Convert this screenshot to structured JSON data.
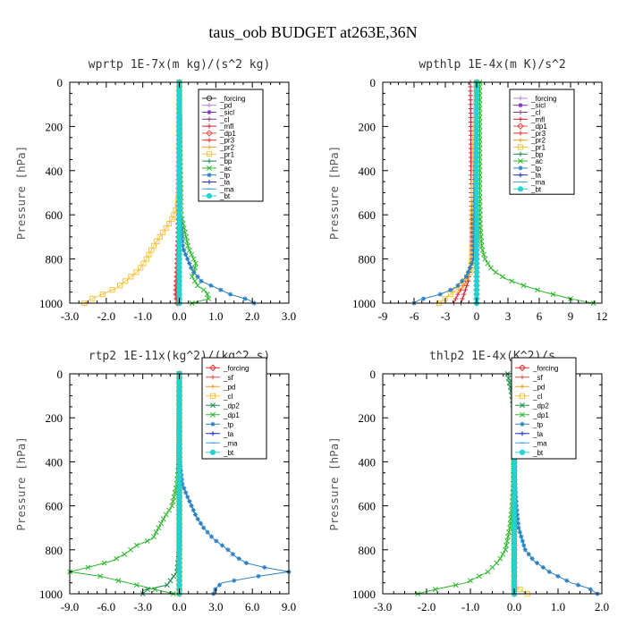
{
  "title": "taus_oob  BUDGET at263E,36N",
  "chart_data": [
    {
      "type": "line",
      "title": "wprtp   1E-7x(m kg)/(s^2 kg)",
      "ylabel": "Pressure [hPa]",
      "xlim": [
        -3.0,
        3.0
      ],
      "ylim": [
        1000,
        0
      ],
      "xticks": [
        "-3.0",
        "-2.0",
        "-1.0",
        "0.0",
        "1.0",
        "2.0",
        "3.0"
      ],
      "yticks": [
        "0",
        "200",
        "400",
        "600",
        "800",
        "1000"
      ],
      "legend": [
        "_forcing",
        "_pd",
        "_sicl",
        "_cl",
        "_mfl",
        "_dp1",
        "_pr3",
        "_pr2",
        "_pr1",
        "_bp",
        "_ac",
        "_tp",
        "_ta",
        "_ma",
        "_bt"
      ],
      "series": [
        {
          "name": "_forcing",
          "color": "#333333",
          "marker": "circle",
          "y": [
            0,
            1000
          ],
          "x": [
            0,
            0
          ]
        },
        {
          "name": "_pd",
          "color": "#b58ad6",
          "marker": "plus",
          "y": [
            0,
            1000
          ],
          "x": [
            0,
            0
          ]
        },
        {
          "name": "_sicl",
          "color": "#7b2fbf",
          "marker": "star",
          "y": [
            0,
            1000
          ],
          "x": [
            0,
            0
          ]
        },
        {
          "name": "_cl",
          "color": "#8b3a7a",
          "marker": "plus",
          "y": [
            0,
            1000
          ],
          "x": [
            0,
            0
          ]
        },
        {
          "name": "_mfl",
          "color": "#cc2233",
          "marker": "plus",
          "y": [
            0,
            600,
            800,
            900,
            960,
            1000
          ],
          "x": [
            0,
            -0.02,
            -0.05,
            -0.08,
            -0.1,
            -0.06
          ]
        },
        {
          "name": "_dp1",
          "color": "#e8504a",
          "marker": "diamond",
          "y": [
            0,
            700,
            850,
            950,
            1000
          ],
          "x": [
            0,
            -0.02,
            -0.05,
            -0.08,
            -0.05
          ]
        },
        {
          "name": "_pr3",
          "color": "#e83030",
          "marker": "plus",
          "y": [
            0,
            1000
          ],
          "x": [
            0,
            0
          ]
        },
        {
          "name": "_pr2",
          "color": "#f0a020",
          "marker": "plus",
          "y": [
            0,
            1000
          ],
          "x": [
            0,
            0
          ]
        },
        {
          "name": "_pr1",
          "color": "#f5c542",
          "marker": "square",
          "y": [
            0,
            500,
            560,
            620,
            680,
            740,
            800,
            850,
            890,
            930,
            960,
            985,
            1000
          ],
          "x": [
            0,
            -0.01,
            -0.05,
            -0.2,
            -0.45,
            -0.7,
            -0.9,
            -1.1,
            -1.4,
            -1.7,
            -2.1,
            -2.45,
            -2.6
          ]
        },
        {
          "name": "_bp",
          "color": "#1a8a4a",
          "marker": "plus",
          "y": [
            0,
            1000
          ],
          "x": [
            0,
            0
          ]
        },
        {
          "name": "_ac",
          "color": "#2db82d",
          "marker": "cross",
          "y": [
            0,
            600,
            750,
            820,
            850,
            880,
            920,
            950,
            980,
            1000
          ],
          "x": [
            0,
            0.05,
            0.25,
            0.45,
            0.42,
            0.35,
            0.5,
            0.75,
            0.8,
            0.35
          ]
        },
        {
          "name": "_tp",
          "color": "#2a7fc0",
          "marker": "star",
          "y": [
            0,
            600,
            750,
            850,
            900,
            930,
            960,
            985,
            1000
          ],
          "x": [
            0,
            0.02,
            0.1,
            0.35,
            0.6,
            1.0,
            1.4,
            1.9,
            2.05
          ]
        },
        {
          "name": "_ta",
          "color": "#1c2db8",
          "marker": "plus",
          "y": [
            0,
            1000
          ],
          "x": [
            0,
            0
          ]
        },
        {
          "name": "_ma",
          "color": "#4aa0d8",
          "marker": "dash",
          "y": [
            0,
            1000
          ],
          "x": [
            0,
            0
          ]
        },
        {
          "name": "_bt",
          "color": "#22d3d3",
          "marker": "filled-circle",
          "y": [
            0,
            1000
          ],
          "x": [
            0,
            0
          ]
        }
      ]
    },
    {
      "type": "line",
      "title": "wpthlp   1E-4x(m K)/s^2",
      "ylabel": "Pressure [hPa]",
      "xlim": [
        -9,
        12
      ],
      "ylim": [
        1000,
        0
      ],
      "xticks": [
        "-9",
        "-6",
        "-3",
        "0",
        "3",
        "6",
        "9",
        "12"
      ],
      "yticks": [
        "0",
        "200",
        "400",
        "600",
        "800",
        "1000"
      ],
      "legend": [
        "_forcing",
        "_sicl",
        "_cl",
        "_mfl",
        "_dp1",
        "_pr3",
        "_pr2",
        "_pr1",
        "_bp",
        "_ac",
        "_tp",
        "_ta",
        "_ma",
        "_bt"
      ],
      "series": [
        {
          "name": "_forcing",
          "color": "#b58ad6",
          "marker": "plus",
          "y": [
            0,
            1000
          ],
          "x": [
            0,
            0
          ]
        },
        {
          "name": "_sicl",
          "color": "#7b2fbf",
          "marker": "star",
          "y": [
            0,
            1000
          ],
          "x": [
            0,
            0
          ]
        },
        {
          "name": "_cl",
          "color": "#8b3a7a",
          "marker": "plus",
          "y": [
            0,
            1000
          ],
          "x": [
            0,
            0
          ]
        },
        {
          "name": "_mfl",
          "color": "#cc2233",
          "marker": "plus",
          "y": [
            0,
            600,
            800,
            900,
            1000
          ],
          "x": [
            -0.6,
            -0.5,
            -0.5,
            -0.8,
            -1.5
          ]
        },
        {
          "name": "_dp1",
          "color": "#e8504a",
          "marker": "diamond",
          "y": [
            0,
            1000
          ],
          "x": [
            0,
            0
          ]
        },
        {
          "name": "_pr3",
          "color": "#e83030",
          "marker": "plus",
          "y": [
            0,
            800,
            900,
            960,
            1000
          ],
          "x": [
            0,
            -0.3,
            -1.0,
            -1.8,
            -2.2
          ]
        },
        {
          "name": "_pr2",
          "color": "#f0a020",
          "marker": "plus",
          "y": [
            0,
            1000
          ],
          "x": [
            0,
            0
          ]
        },
        {
          "name": "_pr1",
          "color": "#f5c542",
          "marker": "square",
          "y": [
            0,
            850,
            920,
            960,
            990,
            1000
          ],
          "x": [
            0,
            -0.5,
            -1.5,
            -2.5,
            -3.3,
            -3.6
          ]
        },
        {
          "name": "_bp",
          "color": "#1a8a4a",
          "marker": "plus",
          "y": [
            0,
            1000
          ],
          "x": [
            0,
            0
          ]
        },
        {
          "name": "_ac",
          "color": "#2db82d",
          "marker": "cross",
          "y": [
            0,
            500,
            650,
            750,
            800,
            850,
            890,
            920,
            950,
            980,
            1000
          ],
          "x": [
            0.3,
            0.3,
            0.35,
            0.5,
            0.8,
            1.5,
            2.8,
            4.5,
            6.5,
            9.0,
            11.2
          ]
        },
        {
          "name": "_tp",
          "color": "#2a7fc0",
          "marker": "star",
          "y": [
            0,
            800,
            880,
            930,
            960,
            985,
            1000
          ],
          "x": [
            0,
            -0.3,
            -1.0,
            -2.0,
            -3.5,
            -5.5,
            -6.0
          ]
        },
        {
          "name": "_ta",
          "color": "#1c2db8",
          "marker": "plus",
          "y": [
            0,
            1000
          ],
          "x": [
            0,
            0
          ]
        },
        {
          "name": "_ma",
          "color": "#4aa0d8",
          "marker": "dash",
          "y": [
            0,
            1000
          ],
          "x": [
            0,
            0
          ]
        },
        {
          "name": "_bt",
          "color": "#22d3d3",
          "marker": "filled-circle",
          "y": [
            0,
            1000
          ],
          "x": [
            0,
            0
          ]
        }
      ]
    },
    {
      "type": "line",
      "title": "rtp2   1E-11x(kg^2)/(kg^2 s)",
      "ylabel": "Pressure [hPa]",
      "xlim": [
        -9.0,
        9.0
      ],
      "ylim": [
        1000,
        0
      ],
      "xticks": [
        "-9.0",
        "-6.0",
        "-3.0",
        "0.0",
        "3.0",
        "6.0",
        "9.0"
      ],
      "yticks": [
        "0",
        "200",
        "400",
        "600",
        "800",
        "1000"
      ],
      "legend": [
        "_forcing",
        "_sf",
        "_pd",
        "_cl",
        "_dp2",
        "_dp1",
        "_tp",
        "_ta",
        "_ma",
        "_bt"
      ],
      "series": [
        {
          "name": "_forcing",
          "color": "#e83030",
          "marker": "diamond",
          "y": [
            0,
            1000
          ],
          "x": [
            0,
            0
          ]
        },
        {
          "name": "_sf",
          "color": "#e05050",
          "marker": "plus",
          "y": [
            0,
            1000
          ],
          "x": [
            0,
            0
          ]
        },
        {
          "name": "_pd",
          "color": "#f0a020",
          "marker": "plus",
          "y": [
            0,
            1000
          ],
          "x": [
            0,
            0
          ]
        },
        {
          "name": "_cl",
          "color": "#f5c542",
          "marker": "square",
          "y": [
            0,
            1000
          ],
          "x": [
            0,
            0
          ]
        },
        {
          "name": "_dp2",
          "color": "#1a8a4a",
          "marker": "cross",
          "y": [
            0,
            800,
            900,
            960,
            985,
            1000
          ],
          "x": [
            0,
            0,
            -0.2,
            -1.0,
            -3.0,
            -3.0
          ]
        },
        {
          "name": "_dp1",
          "color": "#2db82d",
          "marker": "cross",
          "y": [
            0,
            400,
            500,
            600,
            650,
            700,
            750,
            780,
            820,
            850,
            880,
            900,
            920,
            960,
            1000
          ],
          "x": [
            0,
            -0.05,
            -0.2,
            -0.6,
            -1.2,
            -1.7,
            -2.2,
            -3.5,
            -4.5,
            -5.5,
            -7.5,
            -9.0,
            -6.5,
            -3.5,
            -0.5
          ]
        },
        {
          "name": "_tp",
          "color": "#2a7fc0",
          "marker": "star",
          "y": [
            0,
            400,
            500,
            550,
            600,
            650,
            700,
            750,
            800,
            830,
            860,
            880,
            900,
            920,
            950,
            975,
            1000
          ],
          "x": [
            0,
            0.05,
            0.25,
            0.6,
            1.0,
            1.4,
            2.0,
            2.8,
            4.0,
            4.6,
            5.5,
            7.0,
            9.0,
            6.5,
            3.5,
            3.0,
            2.8
          ]
        },
        {
          "name": "_ta",
          "color": "#1c2db8",
          "marker": "plus",
          "y": [
            0,
            1000
          ],
          "x": [
            0,
            0
          ]
        },
        {
          "name": "_ma",
          "color": "#4aa0d8",
          "marker": "dash",
          "y": [
            0,
            1000
          ],
          "x": [
            0,
            0
          ]
        },
        {
          "name": "_bt",
          "color": "#22d3d3",
          "marker": "filled-circle",
          "y": [
            0,
            1000
          ],
          "x": [
            0,
            0
          ]
        }
      ]
    },
    {
      "type": "line",
      "title": "thlp2   1E-4x(K^2)/s",
      "ylabel": "Pressure [hPa]",
      "xlim": [
        -3.0,
        2.0
      ],
      "ylim": [
        1000,
        0
      ],
      "xticks": [
        "-3.0",
        "-2.0",
        "-1.0",
        "0.0",
        "1.0",
        "2.0"
      ],
      "yticks": [
        "0",
        "200",
        "400",
        "600",
        "800",
        "1000"
      ],
      "legend": [
        "_forcing",
        "_sf",
        "_pd",
        "_cl",
        "_dp2",
        "_dp1",
        "_tp",
        "_ta",
        "_ma",
        "_bt"
      ],
      "series": [
        {
          "name": "_forcing",
          "color": "#e83030",
          "marker": "diamond",
          "y": [
            0,
            1000
          ],
          "x": [
            0,
            0
          ]
        },
        {
          "name": "_sf",
          "color": "#e05050",
          "marker": "plus",
          "y": [
            0,
            1000
          ],
          "x": [
            0,
            0
          ]
        },
        {
          "name": "_pd",
          "color": "#f0a020",
          "marker": "plus",
          "y": [
            0,
            1000
          ],
          "x": [
            0,
            0
          ]
        },
        {
          "name": "_cl",
          "color": "#f5c542",
          "marker": "square",
          "y": [
            0,
            960,
            990,
            1000
          ],
          "x": [
            0,
            0,
            0.2,
            0.3
          ]
        },
        {
          "name": "_dp2",
          "color": "#1a8a4a",
          "marker": "cross",
          "y": [
            0,
            50,
            100,
            200,
            1000
          ],
          "x": [
            -0.15,
            -0.1,
            -0.05,
            0,
            0
          ]
        },
        {
          "name": "_dp1",
          "color": "#2db82d",
          "marker": "cross",
          "y": [
            0,
            500,
            600,
            700,
            800,
            850,
            900,
            950,
            980,
            1000
          ],
          "x": [
            0,
            -0.02,
            -0.05,
            -0.1,
            -0.2,
            -0.35,
            -0.6,
            -1.1,
            -1.8,
            -2.2
          ]
        },
        {
          "name": "_tp",
          "color": "#2a7fc0",
          "marker": "star",
          "y": [
            0,
            500,
            600,
            700,
            800,
            850,
            900,
            950,
            975,
            1000
          ],
          "x": [
            0,
            0.02,
            0.05,
            0.1,
            0.25,
            0.45,
            0.8,
            1.3,
            1.7,
            1.9
          ]
        },
        {
          "name": "_ta",
          "color": "#1c2db8",
          "marker": "plus",
          "y": [
            0,
            1000
          ],
          "x": [
            0,
            0
          ]
        },
        {
          "name": "_ma",
          "color": "#4aa0d8",
          "marker": "dash",
          "y": [
            0,
            1000
          ],
          "x": [
            0,
            0
          ]
        },
        {
          "name": "_bt",
          "color": "#22d3d3",
          "marker": "filled-circle",
          "y": [
            0,
            1000
          ],
          "x": [
            0,
            0
          ]
        }
      ]
    }
  ]
}
